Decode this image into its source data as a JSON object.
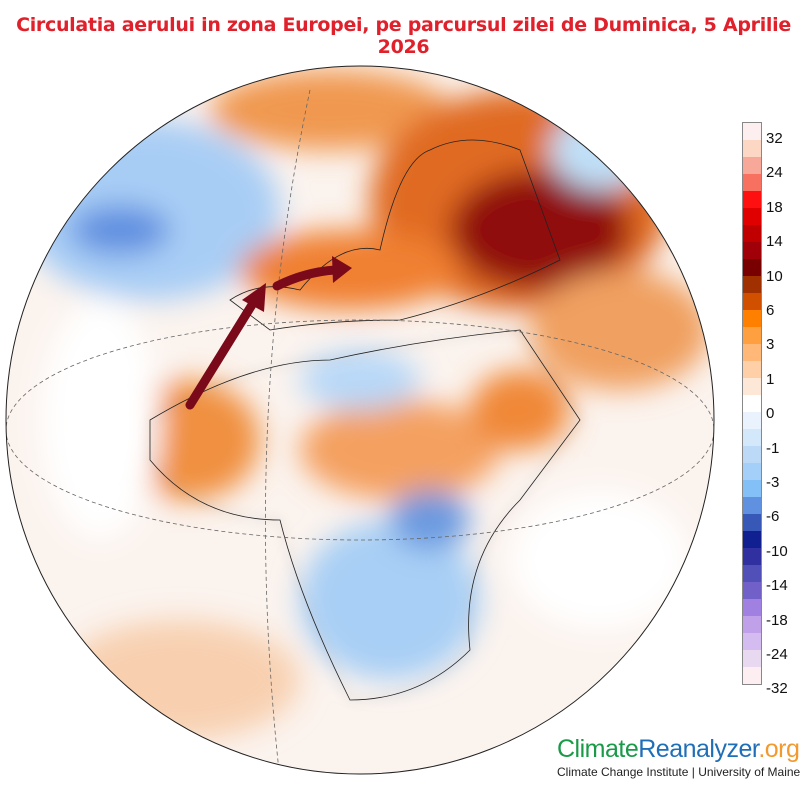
{
  "title": "Circulatia aerului in zona Europei, pe parcursul zilei de Duminica, 5 Aprilie 2026",
  "colorbar": {
    "labels": [
      "32",
      "24",
      "18",
      "14",
      "10",
      "6",
      "3",
      "1",
      "0",
      "-1",
      "-3",
      "-6",
      "-10",
      "-14",
      "-18",
      "-24",
      "-32"
    ],
    "colors": [
      "#fdeef0",
      "#fcd8c4",
      "#f8a898",
      "#f87060",
      "#ff1010",
      "#e00000",
      "#c00000",
      "#a00008",
      "#780000",
      "#a03000",
      "#d05000",
      "#ff8000",
      "#ffa040",
      "#ffb878",
      "#ffd0a8",
      "#fde8d8",
      "#ffffff",
      "#eaf3fd",
      "#d4e8fb",
      "#bcdaf8",
      "#a4cff8",
      "#84c0f8",
      "#6090e0",
      "#3858b8",
      "#102090",
      "#3030a0",
      "#5050b8",
      "#7060c8",
      "#a080e0",
      "#c0a0e8",
      "#d4bcf0",
      "#e8d8f0",
      "#fdeef2"
    ]
  },
  "logo": {
    "part1": "Climate",
    "part2": "Reanalyzer",
    "part3": ".org",
    "subtitle": "Climate Change Institute | University of Maine",
    "colors": {
      "part1": "#1a9a48",
      "part2": "#1f6fb8",
      "part3": "#f29a2e"
    }
  },
  "annotations": {
    "arrow_color": "#7a0a1a",
    "arrows": [
      "airflow-from-northwest-africa-to-iberia",
      "airflow-from-iberia-to-central-europe"
    ]
  }
}
